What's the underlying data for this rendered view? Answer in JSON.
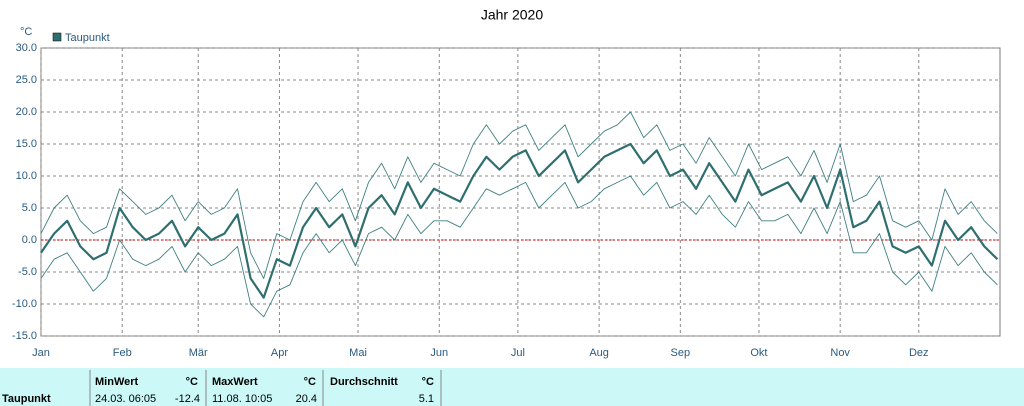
{
  "chart_data": {
    "type": "line",
    "title": "Jahr 2020",
    "y_unit": "°C",
    "legend": "top-left",
    "grid": true,
    "xlim": [
      0,
      366
    ],
    "xticks": [
      {
        "value": 0,
        "label": "Jan"
      },
      {
        "value": 31,
        "label": "Feb"
      },
      {
        "value": 60,
        "label": "Mär"
      },
      {
        "value": 91,
        "label": "Apr"
      },
      {
        "value": 121,
        "label": "Mai"
      },
      {
        "value": 152,
        "label": "Jun"
      },
      {
        "value": 182,
        "label": "Jul"
      },
      {
        "value": 213,
        "label": "Aug"
      },
      {
        "value": 244,
        "label": "Sep"
      },
      {
        "value": 274,
        "label": "Okt"
      },
      {
        "value": 305,
        "label": "Nov"
      },
      {
        "value": 335,
        "label": "Dez"
      }
    ],
    "ylim": [
      -15,
      30
    ],
    "yticks": [
      {
        "value": -15,
        "label": "-15.0"
      },
      {
        "value": -10,
        "label": "-10.0"
      },
      {
        "value": -5,
        "label": "-5.0"
      },
      {
        "value": 0,
        "label": "0.0"
      },
      {
        "value": 5,
        "label": "5.0"
      },
      {
        "value": 10,
        "label": "10.0"
      },
      {
        "value": 15,
        "label": "15.0"
      },
      {
        "value": 20,
        "label": "20.0"
      },
      {
        "value": 25,
        "label": "25.0"
      },
      {
        "value": 30,
        "label": "30.0"
      }
    ],
    "zero_line": {
      "value": 0,
      "color": "#cc0000"
    },
    "x": [
      0,
      5,
      10,
      15,
      20,
      25,
      30,
      35,
      40,
      45,
      50,
      55,
      60,
      65,
      70,
      75,
      80,
      85,
      90,
      95,
      100,
      105,
      110,
      115,
      120,
      125,
      130,
      135,
      140,
      145,
      150,
      155,
      160,
      165,
      170,
      175,
      180,
      185,
      190,
      195,
      200,
      205,
      210,
      215,
      220,
      225,
      230,
      235,
      240,
      245,
      250,
      255,
      260,
      265,
      270,
      275,
      280,
      285,
      290,
      295,
      300,
      305,
      310,
      315,
      320,
      325,
      330,
      335,
      340,
      345,
      350,
      355,
      360,
      365
    ],
    "series": [
      {
        "name": "Taupunkt",
        "color": "#2f6f6f",
        "width": 2.2,
        "values": [
          -2,
          1,
          3,
          -1,
          -3,
          -2,
          5,
          2,
          0,
          1,
          3,
          -1,
          2,
          0,
          1,
          4,
          -6,
          -9,
          -3,
          -4,
          2,
          5,
          2,
          4,
          -1,
          5,
          7,
          4,
          9,
          5,
          8,
          7,
          6,
          10,
          13,
          11,
          13,
          14,
          10,
          12,
          14,
          9,
          11,
          13,
          14,
          15,
          12,
          14,
          10,
          11,
          8,
          12,
          9,
          6,
          11,
          7,
          8,
          9,
          6,
          10,
          5,
          11,
          2,
          3,
          6,
          -1,
          -2,
          -1,
          -4,
          3,
          0,
          2,
          -1,
          -3
        ]
      },
      {
        "color": "#3f8080",
        "width": 0.9,
        "values": [
          -6,
          -3,
          -2,
          -5,
          -8,
          -6,
          0,
          -3,
          -4,
          -3,
          -1,
          -5,
          -2,
          -4,
          -3,
          -1,
          -10,
          -12,
          -8,
          -7,
          -2,
          1,
          -2,
          0,
          -4,
          1,
          2,
          0,
          4,
          1,
          3,
          3,
          2,
          5,
          8,
          7,
          8,
          9,
          5,
          7,
          9,
          5,
          6,
          8,
          9,
          10,
          7,
          9,
          5,
          6,
          4,
          7,
          4,
          2,
          6,
          3,
          3,
          4,
          1,
          5,
          1,
          6,
          -2,
          -2,
          1,
          -5,
          -7,
          -5,
          -8,
          -1,
          -4,
          -2,
          -5,
          -7
        ]
      },
      {
        "color": "#3f8080",
        "width": 0.9,
        "values": [
          1,
          5,
          7,
          3,
          1,
          2,
          8,
          6,
          4,
          5,
          7,
          3,
          6,
          4,
          5,
          8,
          -2,
          -6,
          1,
          0,
          6,
          9,
          6,
          8,
          3,
          9,
          12,
          8,
          13,
          9,
          12,
          11,
          10,
          15,
          18,
          15,
          17,
          18,
          14,
          16,
          18,
          13,
          15,
          17,
          18,
          20,
          16,
          18,
          14,
          15,
          12,
          16,
          13,
          10,
          15,
          11,
          12,
          13,
          10,
          14,
          9,
          15,
          6,
          7,
          10,
          3,
          2,
          3,
          0,
          8,
          4,
          6,
          3,
          1
        ]
      }
    ]
  },
  "stats": {
    "row_label": "Taupunkt",
    "min": {
      "header": "MinWert",
      "unit": "°C",
      "time": "24.03.  06:05",
      "value": "-12.4"
    },
    "max": {
      "header": "MaxWert",
      "unit": "°C",
      "time": "11.08.  10:05",
      "value": "20.4"
    },
    "avg": {
      "header": "Durchschnitt",
      "unit": "°C",
      "value": "5.1"
    }
  }
}
